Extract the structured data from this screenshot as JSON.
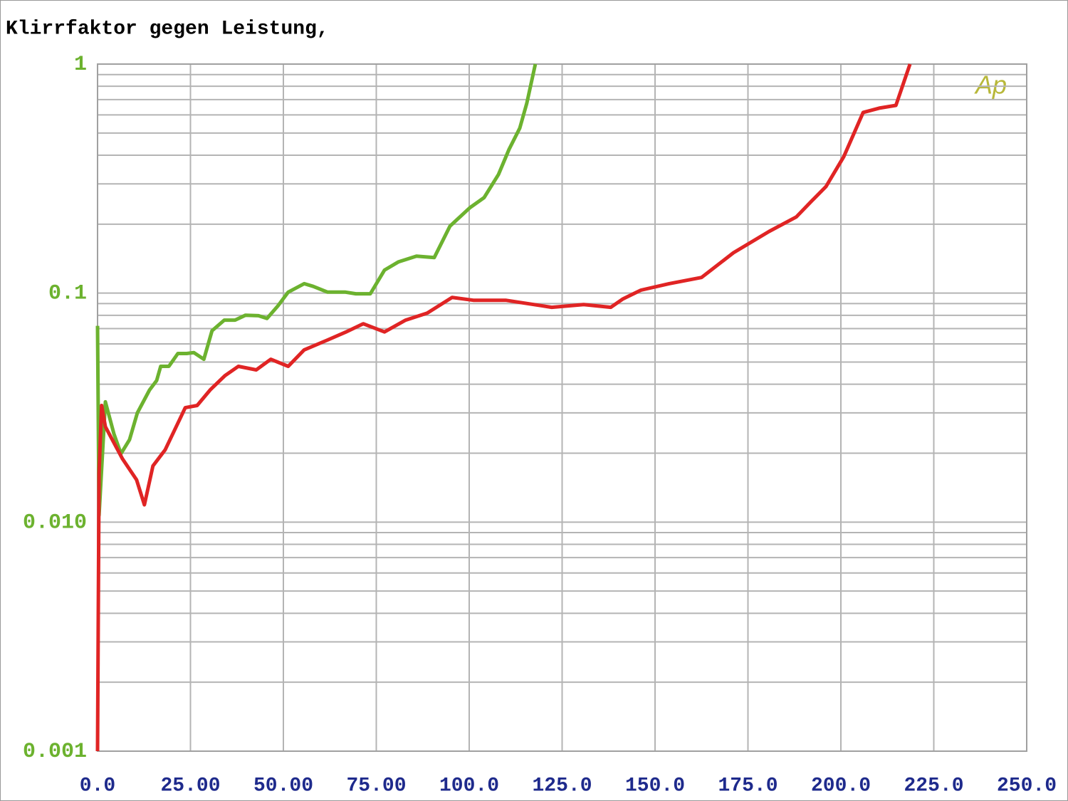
{
  "chart_data": {
    "type": "line",
    "title": "Klirrfaktor gegen Leistung,",
    "logo": "Ap",
    "log_y": true,
    "grid": true,
    "xlim": [
      0,
      250
    ],
    "xticks": [
      {
        "value": 0,
        "label": "0.0"
      },
      {
        "value": 25,
        "label": "25.00"
      },
      {
        "value": 50,
        "label": "50.00"
      },
      {
        "value": 75,
        "label": "75.00"
      },
      {
        "value": 100,
        "label": "100.0"
      },
      {
        "value": 125,
        "label": "125.0"
      },
      {
        "value": 150,
        "label": "150.0"
      },
      {
        "value": 175,
        "label": "175.0"
      },
      {
        "value": 200,
        "label": "200.0"
      },
      {
        "value": 225,
        "label": "225.0"
      },
      {
        "value": 250,
        "label": "250.0"
      }
    ],
    "ylim": [
      0.001,
      1
    ],
    "yticks": [
      0.001,
      {
        "value": 0.01,
        "label": "0.010"
      },
      0.1,
      1
    ],
    "y_minor_gridlines": [
      0.002,
      0.003,
      0.004,
      0.005,
      0.006,
      0.007,
      0.008,
      0.009,
      0.02,
      0.03,
      0.04,
      0.05,
      0.06,
      0.07,
      0.08,
      0.09,
      0.2,
      0.3,
      0.4,
      0.5,
      0.6,
      0.7,
      0.8,
      0.9
    ],
    "series": [
      {
        "color": "#6cb22f",
        "x": [
          0,
          0.4,
          2.1,
          4.4,
          6.3,
          8.6,
          10.7,
          14.0,
          15.9,
          17.0,
          19.2,
          21.6,
          24,
          25.9,
          28.6,
          30.8,
          34.1,
          37,
          39.8,
          43.3,
          45.6,
          48.5,
          51.3,
          55.6,
          58,
          61.9,
          66.7,
          69.5,
          73.4,
          77.2,
          81,
          85.8,
          90.6,
          94.8,
          100.2,
          104,
          107.9,
          110.7,
          113.6,
          115.5,
          117.8
        ],
        "values": [
          0.072,
          0.0107,
          0.0335,
          0.0243,
          0.0199,
          0.0229,
          0.03,
          0.0378,
          0.0415,
          0.0479,
          0.0479,
          0.0545,
          0.0545,
          0.055,
          0.0514,
          0.0685,
          0.0762,
          0.0762,
          0.0801,
          0.0797,
          0.0775,
          0.0879,
          0.101,
          0.11,
          0.107,
          0.101,
          0.101,
          0.0993,
          0.0993,
          0.126,
          0.137,
          0.145,
          0.143,
          0.196,
          0.236,
          0.261,
          0.33,
          0.424,
          0.525,
          0.675,
          1.0
        ]
      },
      {
        "color": "#e02424",
        "x": [
          0,
          0.4,
          1.1,
          2.1,
          6.7,
          10.5,
          12.6,
          14.9,
          18.2,
          23.6,
          26.8,
          30.3,
          34.3,
          37.9,
          42.7,
          46.6,
          51.3,
          55.6,
          61.9,
          66.7,
          71.5,
          77.2,
          82.9,
          88.7,
          95.4,
          101.1,
          109.8,
          122.2,
          130.8,
          138.1,
          141.4,
          146.2,
          153.8,
          162.5,
          171.1,
          180.7,
          188,
          192.1,
          196,
          200.8,
          206,
          210.3,
          214.8,
          218.6
        ],
        "values": [
          0.001,
          0.0164,
          0.0323,
          0.0261,
          0.0189,
          0.0153,
          0.0119,
          0.0176,
          0.0207,
          0.0316,
          0.0323,
          0.0378,
          0.0436,
          0.0479,
          0.0462,
          0.0514,
          0.0479,
          0.0565,
          0.0624,
          0.0675,
          0.0735,
          0.0677,
          0.0762,
          0.0818,
          0.0958,
          0.0931,
          0.0931,
          0.0867,
          0.0891,
          0.0867,
          0.0944,
          0.103,
          0.11,
          0.117,
          0.15,
          0.186,
          0.215,
          0.252,
          0.292,
          0.395,
          0.615,
          0.642,
          0.66,
          1.0
        ]
      }
    ]
  }
}
